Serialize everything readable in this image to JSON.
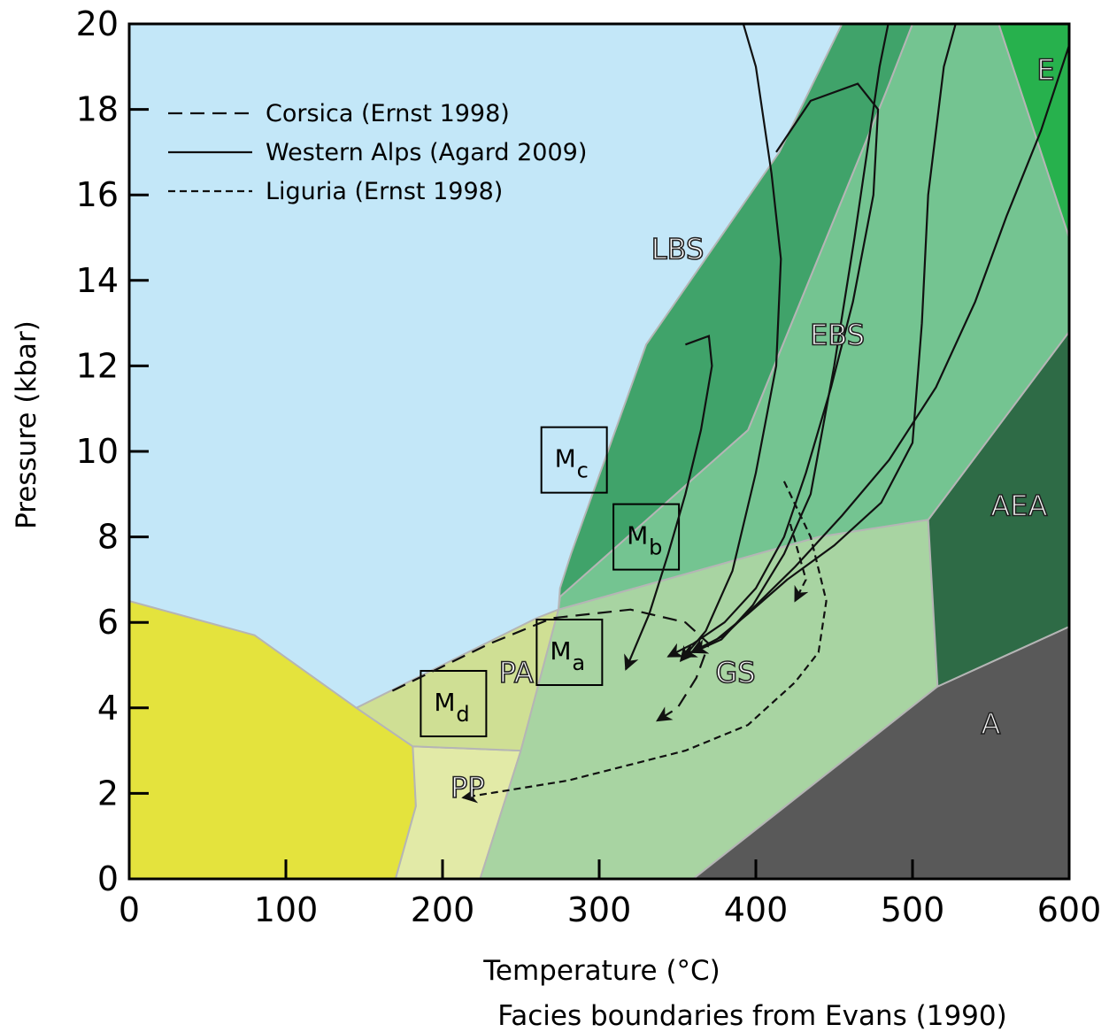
{
  "chart_data": {
    "type": "area",
    "xlabel": "Temperature (°C)",
    "footnote": "Facies boundaries from Evans (1990)",
    "ylabel": "Pressure (kbar)",
    "xlim": [
      0,
      600
    ],
    "ylim": [
      0,
      20
    ],
    "x_ticks": [
      "0",
      "100",
      "200",
      "300",
      "400",
      "500",
      "600"
    ],
    "y_ticks": [
      "0",
      "2",
      "4",
      "6",
      "8",
      "10",
      "12",
      "14",
      "16",
      "18",
      "20"
    ],
    "grid": false,
    "legend_placement": "top-left",
    "facies_regions": [
      {
        "name": "",
        "color": "#e4e33d",
        "points": [
          [
            0,
            0
          ],
          [
            170,
            0
          ],
          [
            183,
            1.7
          ],
          [
            181,
            3.1
          ],
          [
            145,
            4.0
          ],
          [
            80,
            5.7
          ],
          [
            0,
            6.5
          ]
        ]
      },
      {
        "name": "PP",
        "color": "#e2eaa7",
        "points": [
          [
            170,
            0
          ],
          [
            224,
            0
          ],
          [
            250,
            3.0
          ],
          [
            181,
            3.1
          ],
          [
            183,
            1.7
          ]
        ]
      },
      {
        "name": "PA",
        "color": "#cfdf94",
        "points": [
          [
            145,
            4.0
          ],
          [
            181,
            3.1
          ],
          [
            250,
            3.0
          ],
          [
            274,
            6.3
          ],
          [
            260,
            6.1
          ]
        ]
      },
      {
        "name": "GS",
        "color": "#a8d4a2",
        "points": [
          [
            224,
            0
          ],
          [
            360,
            0
          ],
          [
            516,
            4.5
          ],
          [
            510,
            8.4
          ],
          [
            440,
            8.0
          ],
          [
            274,
            6.3
          ],
          [
            250,
            3.0
          ]
        ]
      },
      {
        "name": "A",
        "color": "#595959",
        "points": [
          [
            360,
            0
          ],
          [
            600,
            0
          ],
          [
            600,
            5.9
          ],
          [
            516,
            4.5
          ]
        ]
      },
      {
        "name": "AEA",
        "color": "#2e6b46",
        "points": [
          [
            516,
            4.5
          ],
          [
            600,
            5.9
          ],
          [
            600,
            12.8
          ],
          [
            510,
            8.4
          ]
        ]
      },
      {
        "name": "EBS",
        "color": "#74c491",
        "points": [
          [
            274,
            6.3
          ],
          [
            440,
            8.0
          ],
          [
            510,
            8.4
          ],
          [
            600,
            12.8
          ],
          [
            600,
            15.0
          ],
          [
            555,
            20.0
          ],
          [
            500,
            20.0
          ],
          [
            483,
            18.4
          ],
          [
            395,
            10.5
          ],
          [
            275,
            6.6
          ]
        ]
      },
      {
        "name": "LBS",
        "color": "#40a36a",
        "points": [
          [
            274,
            6.3
          ],
          [
            275,
            6.6
          ],
          [
            395,
            10.5
          ],
          [
            483,
            18.4
          ],
          [
            500,
            20.0
          ],
          [
            455,
            20.0
          ],
          [
            415,
            17.0
          ],
          [
            330,
            12.5
          ],
          [
            282,
            7.6
          ],
          [
            275,
            6.8
          ]
        ]
      },
      {
        "name": "E",
        "color": "#27b14d",
        "points": [
          [
            555,
            20.0
          ],
          [
            600,
            20.0
          ],
          [
            600,
            15.0
          ]
        ]
      }
    ],
    "facies_labels": [
      {
        "text": "LBS",
        "x": 350,
        "y": 14.5
      },
      {
        "text": "EBS",
        "x": 452,
        "y": 12.5
      },
      {
        "text": "E",
        "x": 585,
        "y": 18.7
      },
      {
        "text": "AEA",
        "x": 568,
        "y": 8.5
      },
      {
        "text": "GS",
        "x": 387,
        "y": 4.6
      },
      {
        "text": "A",
        "x": 550,
        "y": 3.4
      },
      {
        "text": "PA",
        "x": 247,
        "y": 4.6
      },
      {
        "text": "PP",
        "x": 216,
        "y": 1.9
      }
    ],
    "sample_boxes": [
      {
        "letter": "M",
        "sub": "c",
        "x": 284,
        "y": 9.8
      },
      {
        "letter": "M",
        "sub": "b",
        "x": 330,
        "y": 8.0
      },
      {
        "letter": "M",
        "sub": "a",
        "x": 281,
        "y": 5.3
      },
      {
        "letter": "M",
        "sub": "d",
        "x": 207,
        "y": 4.1
      }
    ],
    "series": [
      {
        "name": "Corsica (Ernst 1998)",
        "dash": "long-dash",
        "paths": [
          [
            [
              168,
              4.4
            ],
            [
              230,
              5.5
            ],
            [
              270,
              6.1
            ],
            [
              320,
              6.3
            ],
            [
              355,
              6.0
            ],
            [
              370,
              5.5
            ],
            [
              362,
              4.7
            ],
            [
              350,
              4.0
            ],
            [
              337,
              3.7
            ]
          ]
        ]
      },
      {
        "name": "Western Alps (Agard 2009)",
        "dash": "solid",
        "paths": [
          [
            [
              384,
              21.0
            ],
            [
              400,
              19.0
            ],
            [
              410,
              16.5
            ],
            [
              416,
              14.5
            ],
            [
              413,
              12.0
            ],
            [
              400,
              9.5
            ],
            [
              385,
              7.2
            ],
            [
              368,
              5.8
            ],
            [
              352,
              5.1
            ]
          ],
          [
            [
              413,
              17.0
            ],
            [
              435,
              18.2
            ],
            [
              465,
              18.6
            ],
            [
              478,
              18.0
            ],
            [
              475,
              16.0
            ],
            [
              462,
              13.5
            ],
            [
              448,
              11.5
            ],
            [
              432,
              9.5
            ],
            [
              418,
              8.0
            ],
            [
              400,
              6.8
            ],
            [
              380,
              6.0
            ],
            [
              360,
              5.5
            ],
            [
              344,
              5.2
            ]
          ],
          [
            [
              490,
              21.0
            ],
            [
              479,
              19.0
            ],
            [
              463,
              15.0
            ],
            [
              450,
              12.0
            ],
            [
              435,
              9.0
            ],
            [
              418,
              7.6
            ],
            [
              398,
              6.4
            ],
            [
              378,
              5.6
            ],
            [
              360,
              5.3
            ]
          ],
          [
            [
              535,
              21.0
            ],
            [
              520,
              19.0
            ],
            [
              510,
              16.0
            ],
            [
              506,
              13.0
            ],
            [
              500,
              10.2
            ],
            [
              480,
              8.8
            ],
            [
              450,
              7.8
            ],
            [
              420,
              7.0
            ],
            [
              395,
              6.2
            ],
            [
              375,
              5.6
            ],
            [
              353,
              5.2
            ]
          ],
          [
            [
              355,
              12.5
            ],
            [
              370,
              12.7
            ],
            [
              372,
              12.0
            ],
            [
              365,
              10.5
            ],
            [
              355,
              9.0
            ],
            [
              344,
              7.6
            ],
            [
              332,
              6.2
            ],
            [
              317,
              4.9
            ]
          ],
          [
            [
              600,
              19.5
            ],
            [
              582,
              17.5
            ],
            [
              560,
              15.5
            ],
            [
              540,
              13.5
            ],
            [
              515,
              11.5
            ],
            [
              485,
              9.8
            ],
            [
              455,
              8.5
            ],
            [
              425,
              7.3
            ],
            [
              400,
              6.4
            ],
            [
              380,
              5.7
            ],
            [
              359,
              5.3
            ]
          ]
        ]
      },
      {
        "name": "Liguria (Ernst 1998)",
        "dash": "short-dash",
        "paths": [
          [
            [
              418,
              9.3
            ],
            [
              435,
              8.0
            ],
            [
              445,
              6.5
            ],
            [
              440,
              5.3
            ],
            [
              425,
              4.6
            ],
            [
              395,
              3.6
            ],
            [
              355,
              3.0
            ],
            [
              280,
              2.3
            ],
            [
              213,
              1.9
            ]
          ],
          [
            [
              422,
              8.3
            ],
            [
              432,
              7.0
            ],
            [
              425,
              6.5
            ]
          ]
        ]
      }
    ]
  }
}
